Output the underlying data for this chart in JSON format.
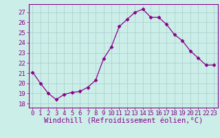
{
  "x": [
    0,
    1,
    2,
    3,
    4,
    5,
    6,
    7,
    8,
    9,
    10,
    11,
    12,
    13,
    14,
    15,
    16,
    17,
    18,
    19,
    20,
    21,
    22,
    23
  ],
  "y": [
    21.1,
    20.0,
    19.0,
    18.4,
    18.9,
    19.1,
    19.2,
    19.6,
    20.3,
    22.4,
    23.6,
    25.6,
    26.3,
    27.0,
    27.3,
    26.5,
    26.5,
    25.8,
    24.8,
    24.2,
    23.2,
    22.5,
    21.8,
    21.8
  ],
  "line_color": "#880088",
  "marker": "D",
  "marker_size": 2.5,
  "bg_color": "#cceee8",
  "grid_color": "#aacccc",
  "xlabel": "Windchill (Refroidissement éolien,°C)",
  "ylabel_ticks": [
    18,
    19,
    20,
    21,
    22,
    23,
    24,
    25,
    26,
    27
  ],
  "xlim": [
    -0.5,
    23.5
  ],
  "ylim": [
    17.6,
    27.8
  ],
  "xlabel_fontsize": 7.5,
  "tick_fontsize": 6.5,
  "title": ""
}
